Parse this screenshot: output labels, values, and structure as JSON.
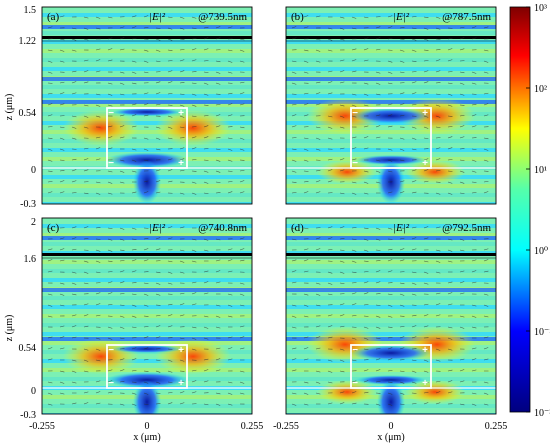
{
  "panels": [
    {
      "tag": "(a)",
      "field_label": "|E|²",
      "wavelength": "@739.5nm",
      "z_ticks": [
        "1.5",
        "1.22",
        "0.54",
        "0"
      ],
      "dual_glow": false
    },
    {
      "tag": "(b)",
      "field_label": "|E|²",
      "wavelength": "@787.5nm",
      "z_ticks": [],
      "dual_glow": true
    },
    {
      "tag": "(c)",
      "field_label": "|E|²",
      "wavelength": "@740.8nm",
      "z_ticks": [
        "2",
        "1.6",
        "0.54",
        "0",
        "-0.3"
      ],
      "dual_glow": false
    },
    {
      "tag": "(d)",
      "field_label": "|E|²",
      "wavelength": "@792.5nm",
      "z_ticks": [],
      "dual_glow": true
    }
  ],
  "axes": {
    "z_label": "z (μm)",
    "x_label": "x (μm)",
    "x_ticks": [
      "-0.255",
      "0",
      "0.255"
    ],
    "top_z_ticks": [
      "-0.3"
    ]
  },
  "colorbar": {
    "ticks": [
      "10³",
      "10²",
      "10¹",
      "10⁰",
      "10⁻¹",
      "10⁻²"
    ],
    "colors": [
      "#7f0000",
      "#ff0000",
      "#ffff00",
      "#55ffaa",
      "#00ffff",
      "#0000ff",
      "#00007f"
    ]
  },
  "charges": {
    "plus": "+",
    "minus": "−"
  }
}
